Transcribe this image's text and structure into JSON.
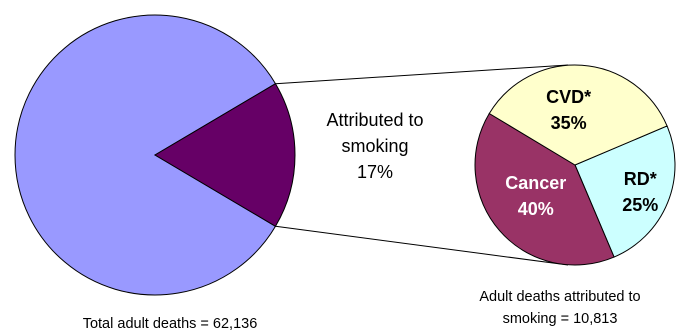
{
  "chart_data": [
    {
      "type": "pie",
      "categories": [
        "Other",
        "Attributed to smoking"
      ],
      "values": [
        83,
        17
      ],
      "labels": [
        {
          "category": "Attributed to smoking",
          "lines": [
            "Attributed to",
            "smoking",
            "17%"
          ]
        }
      ],
      "caption": "Total adult deaths = 62,136",
      "colors": [
        "#9999ff",
        "#660066"
      ]
    },
    {
      "type": "pie",
      "categories": [
        "CVD*",
        "RD*",
        "Cancer"
      ],
      "values": [
        35,
        25,
        40
      ],
      "value_labels": [
        "35%",
        "25%",
        "40%"
      ],
      "caption_lines": [
        "Adult deaths attributed to",
        "smoking = 10,813"
      ],
      "colors": [
        "#ffffcc",
        "#ccffff",
        "#993366"
      ],
      "label_colors": [
        "#000000",
        "#000000",
        "#ffffff"
      ]
    }
  ]
}
